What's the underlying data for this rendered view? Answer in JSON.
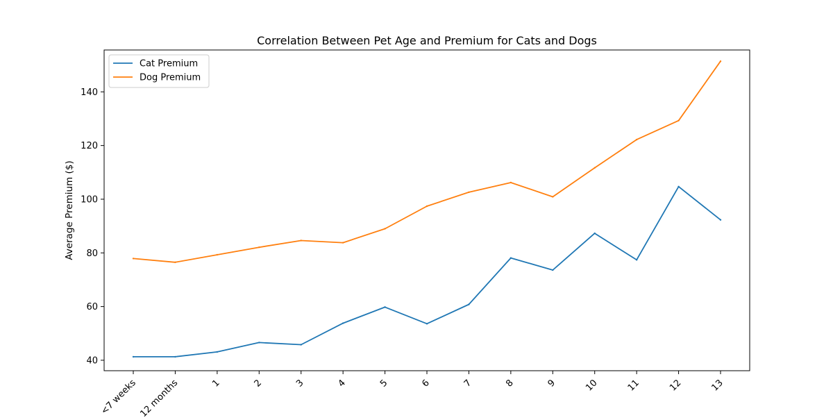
{
  "chart_data": {
    "type": "line",
    "title": "Correlation Between Pet Age and Premium for Cats and Dogs",
    "xlabel": "",
    "ylabel": "Average Premium ($)",
    "categories": [
      "<7 weeks",
      "12 months",
      "1",
      "2",
      "3",
      "4",
      "5",
      "6",
      "7",
      "8",
      "9",
      "10",
      "11",
      "12",
      "13"
    ],
    "ylim": [
      36.1,
      155.6
    ],
    "yticks": [
      40,
      60,
      80,
      100,
      120,
      140
    ],
    "grid": false,
    "legend_position": "upper-left",
    "series": [
      {
        "name": "Cat Premium",
        "color": "#1f77b4",
        "values": [
          41.3,
          41.3,
          43.1,
          46.6,
          45.8,
          53.8,
          59.8,
          53.6,
          60.8,
          78.1,
          73.6,
          87.3,
          77.4,
          104.7,
          92.3
        ]
      },
      {
        "name": "Dog Premium",
        "color": "#ff7f0e",
        "values": [
          77.9,
          76.5,
          79.3,
          82.1,
          84.6,
          83.8,
          89.0,
          97.4,
          102.6,
          106.2,
          100.9,
          111.7,
          122.2,
          129.3,
          151.4
        ]
      }
    ]
  }
}
